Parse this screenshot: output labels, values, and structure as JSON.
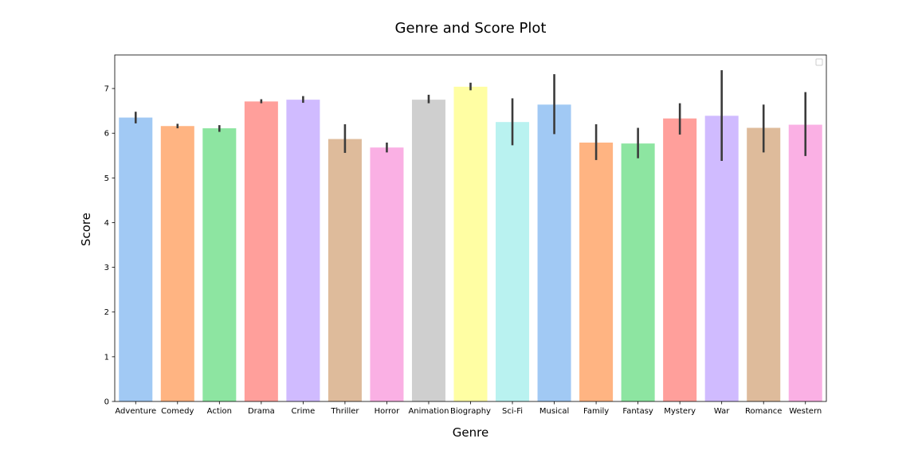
{
  "chart_data": {
    "type": "bar",
    "title": "Genre and Score Plot",
    "xlabel": "Genre",
    "ylabel": "Score",
    "ylim": [
      0,
      7.75
    ],
    "yticks": [
      0,
      1,
      2,
      3,
      4,
      5,
      6,
      7
    ],
    "grid": false,
    "legend": "top-right (empty)",
    "categories": [
      "Adventure",
      "Comedy",
      "Action",
      "Drama",
      "Crime",
      "Thriller",
      "Horror",
      "Animation",
      "Biography",
      "Sci-Fi",
      "Musical",
      "Family",
      "Fantasy",
      "Mystery",
      "War",
      "Romance",
      "Western"
    ],
    "values": [
      6.35,
      6.16,
      6.11,
      6.71,
      6.75,
      5.87,
      5.68,
      6.75,
      7.04,
      6.25,
      6.64,
      5.79,
      5.77,
      6.33,
      6.39,
      6.12,
      6.19
    ],
    "error_low": [
      6.22,
      6.11,
      6.03,
      6.67,
      6.68,
      5.56,
      5.57,
      6.67,
      6.96,
      5.73,
      5.98,
      5.4,
      5.44,
      5.97,
      5.38,
      5.57,
      5.49
    ],
    "error_high": [
      6.48,
      6.21,
      6.18,
      6.76,
      6.83,
      6.2,
      5.79,
      6.86,
      7.13,
      6.78,
      7.32,
      6.2,
      6.12,
      6.67,
      7.41,
      6.64,
      6.92
    ],
    "colors": [
      "#a1c9f4",
      "#ffb482",
      "#8de5a1",
      "#ff9f9b",
      "#d0bbff",
      "#debb9b",
      "#fab0e4",
      "#cfcfcf",
      "#fffea3",
      "#b9f2f0",
      "#a1c9f4",
      "#ffb482",
      "#8de5a1",
      "#ff9f9b",
      "#d0bbff",
      "#debb9b",
      "#fab0e4"
    ],
    "error_color": "#3b3b3b"
  }
}
